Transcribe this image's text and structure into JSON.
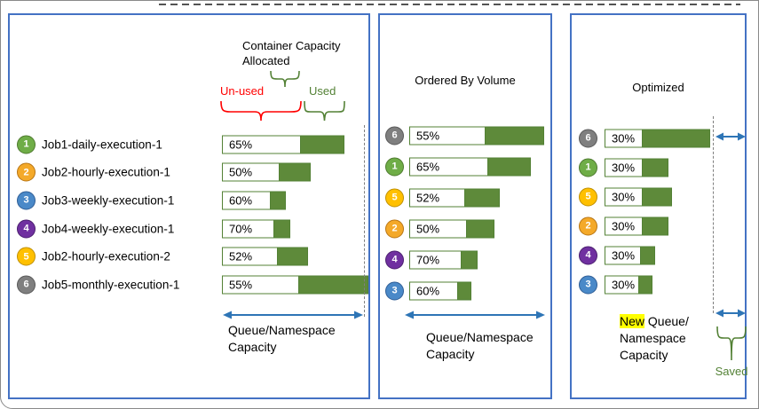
{
  "colors": {
    "panel_border": "#4472C4",
    "bar_fill_green": "#5E8A3A",
    "bar_outline_green": "#538135",
    "arrow_blue": "#2E75B6",
    "unused_label_red": "#FF0000",
    "used_label_green": "#538135",
    "saved_label_green": "#538135",
    "new_highlight_yellow": "#FFFF00"
  },
  "panels": [
    {
      "id": "allocated",
      "annotation": {
        "title_line1": "Container Capacity",
        "title_line2": "Allocated",
        "unused_label": "Un-used",
        "used_label": "Used"
      },
      "rows": [
        {
          "num": "1",
          "label": "Job1-daily-execution-1",
          "pct": "65%",
          "circle_fill": "#6FAD47",
          "circle_border": "#4E7A2F",
          "unused_w": 88,
          "used_w": 48
        },
        {
          "num": "2",
          "label": "Job2-hourly-execution-1",
          "pct": "50%",
          "circle_fill": "#F4A929",
          "circle_border": "#B87514",
          "unused_w": 64,
          "used_w": 34
        },
        {
          "num": "3",
          "label": "Job3-weekly-execution-1",
          "pct": "60%",
          "circle_fill": "#4A89C8",
          "circle_border": "#2F5E96",
          "unused_w": 54,
          "used_w": 16
        },
        {
          "num": "4",
          "label": "Job4-weekly-execution-1",
          "pct": "70%",
          "circle_fill": "#7030A0",
          "circle_border": "#4B1F6F",
          "unused_w": 58,
          "used_w": 17
        },
        {
          "num": "5",
          "label": "Job2-hourly-execution-2",
          "pct": "52%",
          "circle_fill": "#FFC000",
          "circle_border": "#BF8F00",
          "unused_w": 62,
          "used_w": 33
        },
        {
          "num": "6",
          "label": "Job5-monthly-execution-1",
          "pct": "55%",
          "circle_fill": "#7F7F7F",
          "circle_border": "#595959",
          "unused_w": 86,
          "used_w": 77
        }
      ],
      "axis": {
        "line1": "Queue/Namespace",
        "line2": "Capacity"
      }
    },
    {
      "id": "ordered",
      "title": "Ordered By Volume",
      "rows": [
        {
          "num": "6",
          "pct": "55%",
          "circle_fill": "#7F7F7F",
          "circle_border": "#595959",
          "unused_w": 85,
          "used_w": 65
        },
        {
          "num": "1",
          "pct": "65%",
          "circle_fill": "#6FAD47",
          "circle_border": "#4E7A2F",
          "unused_w": 88,
          "used_w": 47
        },
        {
          "num": "5",
          "pct": "52%",
          "circle_fill": "#FFC000",
          "circle_border": "#BF8F00",
          "unused_w": 62,
          "used_w": 38
        },
        {
          "num": "2",
          "pct": "50%",
          "circle_fill": "#F4A929",
          "circle_border": "#B87514",
          "unused_w": 64,
          "used_w": 30
        },
        {
          "num": "4",
          "pct": "70%",
          "circle_fill": "#7030A0",
          "circle_border": "#4B1F6F",
          "unused_w": 58,
          "used_w": 17
        },
        {
          "num": "3",
          "pct": "60%",
          "circle_fill": "#4A89C8",
          "circle_border": "#2F5E96",
          "unused_w": 54,
          "used_w": 14
        }
      ],
      "axis": {
        "line1": "Queue/Namespace",
        "line2": "Capacity"
      }
    },
    {
      "id": "optimized",
      "title": "Optimized",
      "rows": [
        {
          "num": "6",
          "pct": "30%",
          "circle_fill": "#7F7F7F",
          "circle_border": "#595959",
          "unused_w": 42,
          "used_w": 75
        },
        {
          "num": "1",
          "pct": "30%",
          "circle_fill": "#6FAD47",
          "circle_border": "#4E7A2F",
          "unused_w": 42,
          "used_w": 28
        },
        {
          "num": "5",
          "pct": "30%",
          "circle_fill": "#FFC000",
          "circle_border": "#BF8F00",
          "unused_w": 42,
          "used_w": 32
        },
        {
          "num": "2",
          "pct": "30%",
          "circle_fill": "#F4A929",
          "circle_border": "#B87514",
          "unused_w": 42,
          "used_w": 28
        },
        {
          "num": "4",
          "pct": "30%",
          "circle_fill": "#7030A0",
          "circle_border": "#4B1F6F",
          "unused_w": 40,
          "used_w": 15
        },
        {
          "num": "3",
          "pct": "30%",
          "circle_fill": "#4A89C8",
          "circle_border": "#2F5E96",
          "unused_w": 38,
          "used_w": 14
        }
      ],
      "axis": {
        "new_label": "New",
        "line1_rest": " Queue/",
        "line2": "Namespace",
        "line3": "Capacity"
      },
      "saved_label": "Saved"
    }
  ]
}
